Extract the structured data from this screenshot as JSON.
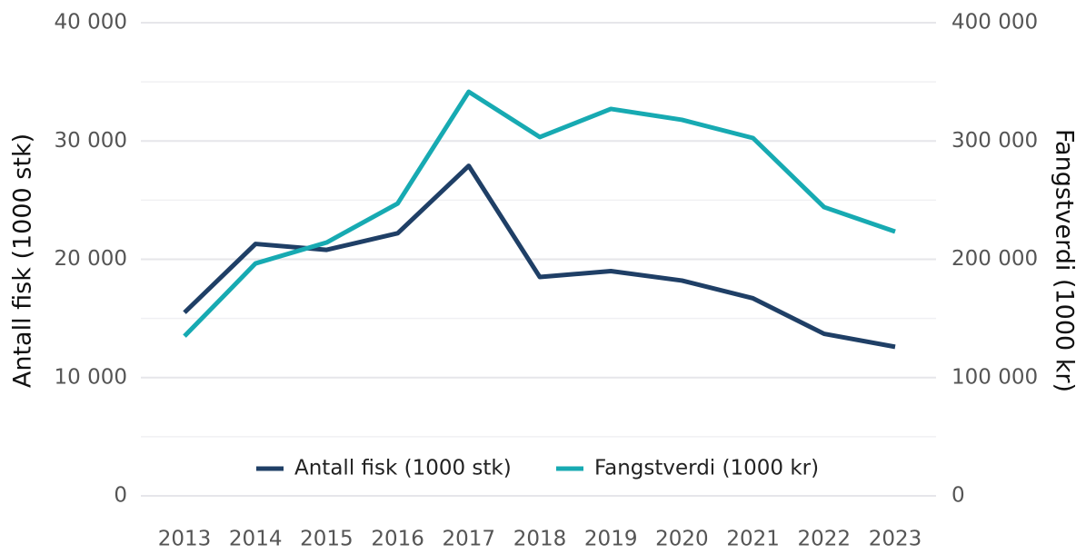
{
  "chart_data": {
    "type": "line",
    "x": [
      "2013",
      "2014",
      "2015",
      "2016",
      "2017",
      "2018",
      "2019",
      "2020",
      "2021",
      "2022",
      "2023"
    ],
    "ylabel": "Antall fisk (1000 stk)",
    "y2label": "Fangstverdi (1000 kr)",
    "ylim": [
      0,
      40000
    ],
    "yticks": [
      0,
      {
        "value": 10000,
        "label": "10 000"
      },
      {
        "value": 20000,
        "label": "20 000"
      },
      {
        "value": 30000,
        "label": "30 000"
      },
      {
        "value": 40000,
        "label": "40 000"
      }
    ],
    "yminor": [
      5000,
      15000,
      25000,
      35000
    ],
    "y2lim": [
      0,
      400000
    ],
    "y2ticks": [
      0,
      {
        "value": 100000,
        "label": "100 000"
      },
      {
        "value": 200000,
        "label": "200 000"
      },
      {
        "value": 300000,
        "label": "300 000"
      },
      {
        "value": 400000,
        "label": "400 000"
      }
    ],
    "grid": true,
    "legend": "bottom",
    "series": [
      {
        "name": "Antall fisk (1000 stk)",
        "color": "#1f3f66",
        "values": [
          15500,
          21300,
          20800,
          22200,
          27900,
          18500,
          19000,
          18200,
          16700,
          13700,
          12600
        ]
      },
      {
        "name": "Fangstverdi (1000 kr)",
        "color": "#17aab2",
        "axis": "y2",
        "values": [
          135000,
          196500,
          214200,
          247200,
          341600,
          303300,
          327100,
          317900,
          302500,
          244100,
          223400
        ]
      }
    ]
  }
}
